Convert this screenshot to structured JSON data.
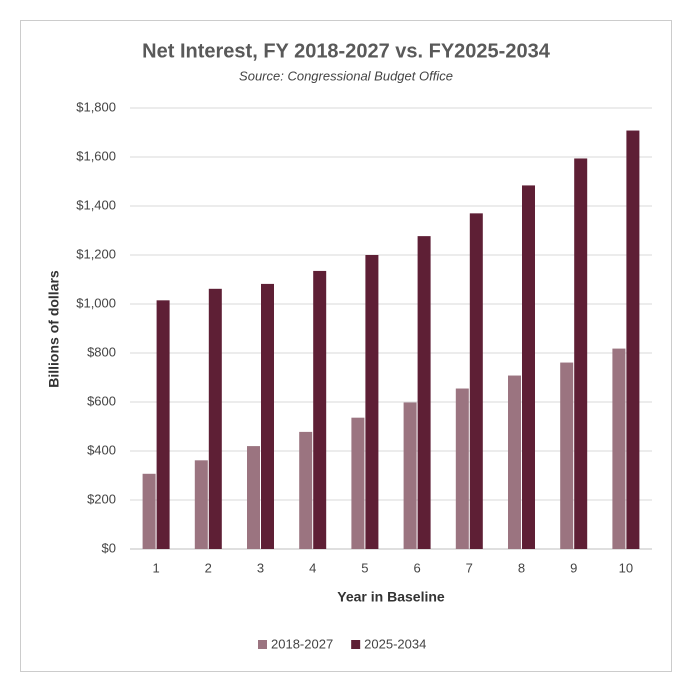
{
  "chart_data": {
    "type": "bar",
    "title": "Net Interest, FY 2018-2027 vs. FY2025-2034",
    "subtitle": "Source: Congressional Budget Office",
    "x_label": "Year in Baseline",
    "y_label": "Billions of dollars",
    "categories": [
      "1",
      "2",
      "3",
      "4",
      "5",
      "6",
      "7",
      "8",
      "9",
      "10"
    ],
    "series": [
      {
        "name": "2018-2027",
        "color": "#9b7480",
        "values": [
          307,
          362,
          420,
          478,
          536,
          598,
          655,
          708,
          761,
          818
        ]
      },
      {
        "name": "2025-2034",
        "color": "#5e1f35",
        "values": [
          1015,
          1062,
          1082,
          1135,
          1200,
          1277,
          1370,
          1484,
          1594,
          1708
        ]
      }
    ],
    "ylim": [
      0,
      1800
    ],
    "yticks": [
      {
        "value": 0,
        "label": "$0"
      },
      {
        "value": 200,
        "label": "$200"
      },
      {
        "value": 400,
        "label": "$400"
      },
      {
        "value": 600,
        "label": "$600"
      },
      {
        "value": 800,
        "label": "$800"
      },
      {
        "value": 1000,
        "label": "$1,000"
      },
      {
        "value": 1200,
        "label": "$1,200"
      },
      {
        "value": 1400,
        "label": "$1,400"
      },
      {
        "value": 1600,
        "label": "$1,600"
      },
      {
        "value": 1800,
        "label": "$1,800"
      }
    ],
    "grid": true,
    "legend": "bottom"
  }
}
